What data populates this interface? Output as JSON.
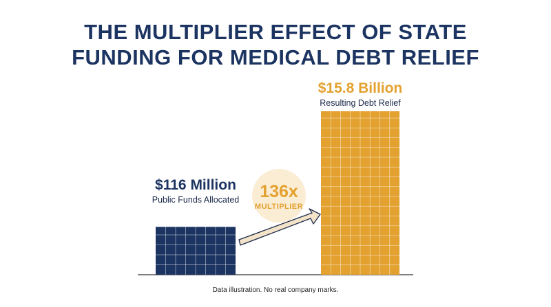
{
  "title_lines": [
    "THE MULTIPLIER EFFECT OF STATE",
    "FUNDING FOR MEDICAL DEBT RELIEF"
  ],
  "footnote": "Data illustration. No real company marks.",
  "colors": {
    "title": "#1c3461",
    "public_bar": "#1c3461",
    "relief_bar": "#e3a12f",
    "circle": "#fbecd4",
    "arrow": "#f3e3c8"
  },
  "chart_data": {
    "type": "bar",
    "title": "THE MULTIPLIER EFFECT OF STATE FUNDING FOR MEDICAL DEBT RELIEF",
    "categories": [
      "Public Funds Allocated",
      "Resulting Debt Relief"
    ],
    "values": [
      116,
      15800
    ],
    "units": "million USD",
    "value_labels": [
      "$116 Million",
      "$15.8 Billion"
    ],
    "bar_colors": [
      "#1c3461",
      "#e3a12f"
    ],
    "multiplier": {
      "value_label": "136x",
      "label": "MULTIPLIER"
    },
    "scale": "non-linear (illustrative)",
    "grid": false,
    "legend": "none"
  }
}
